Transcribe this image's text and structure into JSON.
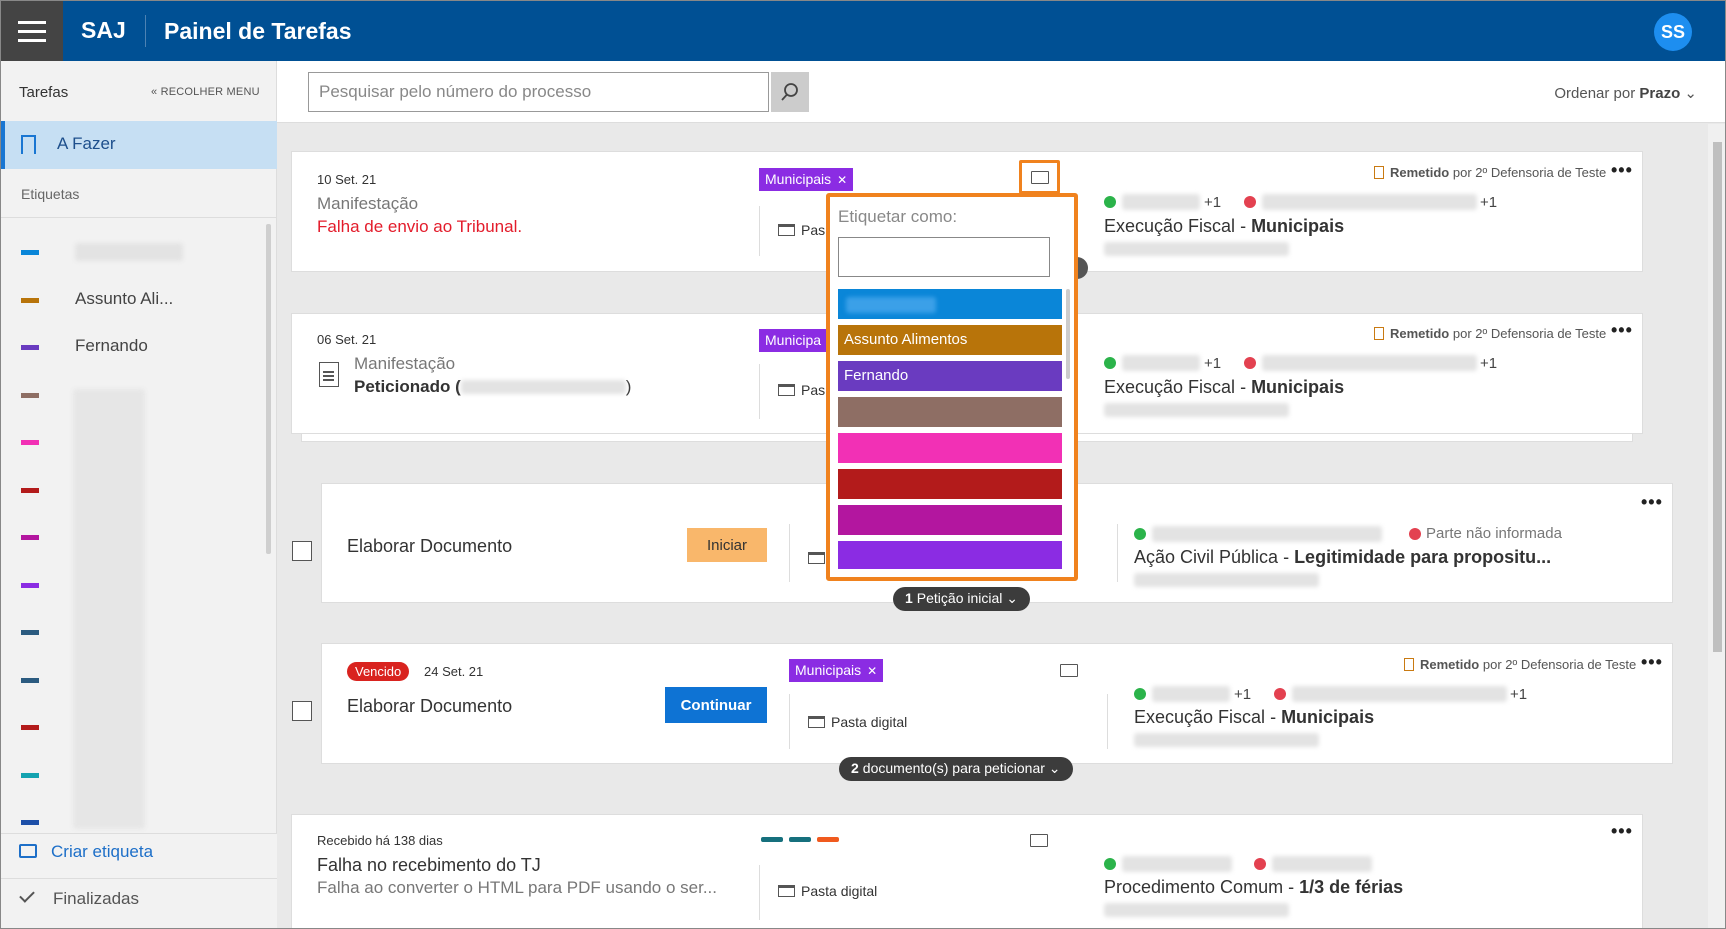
{
  "header": {
    "brand": "SAJ",
    "title": "Painel de Tarefas",
    "avatar": "SS"
  },
  "sidebar": {
    "title": "Tarefas",
    "collapse_label": "« RECOLHER MENU",
    "active_item": "A Fazer",
    "tags_heading": "Etiquetas",
    "tags": [
      {
        "label": "",
        "color": "#0a86d8"
      },
      {
        "label": "Assunto Ali...",
        "color": "#b8740a"
      },
      {
        "label": "Fernando",
        "color": "#6a3bc0"
      },
      {
        "label": "",
        "color": "#8e6e64"
      },
      {
        "label": "",
        "color": "#f230b5"
      },
      {
        "label": "",
        "color": "#b31b1b"
      },
      {
        "label": "",
        "color": "#b3169f"
      },
      {
        "label": "",
        "color": "#8b2ce3"
      },
      {
        "label": "",
        "color": "#2b5b80"
      },
      {
        "label": "",
        "color": "#2b5b80"
      },
      {
        "label": "",
        "color": "#b31b1b"
      },
      {
        "label": "",
        "color": "#14a3b0"
      },
      {
        "label": "",
        "color": "#1d4fa8"
      }
    ],
    "create_label": "Criar etiqueta",
    "finished_label": "Finalizadas"
  },
  "search": {
    "placeholder": "Pesquisar pelo número do processo"
  },
  "order": {
    "prefix": "Ordenar por",
    "value": "Prazo"
  },
  "popup": {
    "heading": "Etiquetar como:",
    "options": [
      {
        "label": "",
        "color": "#0a86d8"
      },
      {
        "label": "Assunto Alimentos",
        "color": "#b8740a"
      },
      {
        "label": "Fernando",
        "color": "#6a3bc0"
      },
      {
        "label": "",
        "color": "#8e6e64"
      },
      {
        "label": "",
        "color": "#f230b5"
      },
      {
        "label": "",
        "color": "#b31b1b"
      },
      {
        "label": "",
        "color": "#b3169f"
      },
      {
        "label": "",
        "color": "#8b2ce3"
      }
    ]
  },
  "cards": [
    {
      "date": "10 Set. 21",
      "kind": "Manifestação",
      "sub": "Falha de envio ao Tribunal.",
      "chip": "Municipais",
      "folder": "Pas",
      "remetido_label": "Remetido",
      "remetido_by": "por 2º Defensoria de Teste",
      "plus_count": "+1",
      "minus_count": "+1",
      "proc_class": "Execução Fiscal",
      "proc_subject": "Municipais"
    },
    {
      "date": "06 Set. 21",
      "kind": "Manifestação",
      "sub": "Peticionado (",
      "sub_end": ")",
      "chip": "Municipa",
      "folder": "Pas",
      "remetido_label": "Remetido",
      "remetido_by": "por 2º Defensoria de Teste",
      "plus_count": "+1",
      "minus_count": "+1",
      "proc_class": "Execução Fiscal",
      "proc_subject": "Municipais"
    },
    {
      "title": "Elaborar Documento",
      "button": "Iniciar",
      "not_informed": "Parte não informada",
      "proc_class": "Ação Civil Pública",
      "proc_subject": "Legitimidade para propositu...",
      "pill_count": "1",
      "pill_label": "Petição inicial"
    },
    {
      "badge": "Vencido",
      "date": "24 Set. 21",
      "title": "Elaborar Documento",
      "button": "Continuar",
      "chip": "Municipais",
      "folder": "Pasta digital",
      "remetido_label": "Remetido",
      "remetido_by": "por 2º Defensoria de Teste",
      "plus_count": "+1",
      "minus_count": "+1",
      "proc_class": "Execução Fiscal",
      "proc_subject": "Municipais",
      "pill_count": "2",
      "pill_label": "documento(s) para peticionar"
    },
    {
      "date": "Recebido há 138 dias",
      "title": "Falha no recebimento do TJ",
      "sub": "Falha ao converter o HTML para PDF usando o ser...",
      "folder": "Pasta digital",
      "color_bars": [
        "#16707d",
        "#16707d",
        "#f05a1e"
      ],
      "proc_class": "Procedimento Comum",
      "proc_subject": "1/3 de férias"
    }
  ],
  "dots": "•••"
}
